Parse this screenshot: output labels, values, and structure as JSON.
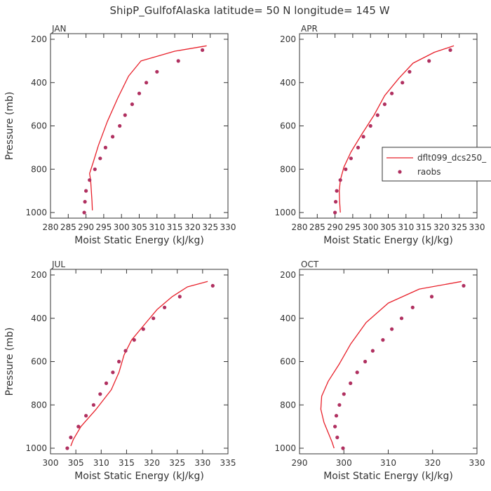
{
  "title": "ShipP_GulfofAlaska   latitude= 50 N longitude= 145 W",
  "legend": {
    "model_label": "dflt099_dcs250_",
    "obs_label": "raobs"
  },
  "colors": {
    "model": "#e8202a",
    "obs": "#b03060",
    "axis": "#333333"
  },
  "chart_data": [
    {
      "type": "line",
      "panel": "JAN",
      "title": "JAN",
      "xlabel": "Moist Static Energy (kJ/kg)",
      "ylabel": "Pressure (mb)",
      "xlim": [
        280,
        330
      ],
      "ylim": [
        200,
        1000
      ],
      "xticks": [
        "280",
        "285",
        "290",
        "295",
        "300",
        "305",
        "310",
        "315",
        "320",
        "325",
        "330"
      ],
      "yticks": [
        "200",
        "400",
        "600",
        "800",
        "1000"
      ],
      "series": [
        {
          "name": "dflt099_dcs250_",
          "kind": "line",
          "x": [
            324,
            315,
            305.5,
            302,
            299,
            296,
            293.5,
            292,
            291,
            291.3,
            291.5,
            291.7,
            291.8
          ],
          "y": [
            230,
            255,
            300,
            370,
            470,
            580,
            690,
            770,
            820,
            850,
            900,
            950,
            990
          ]
        },
        {
          "name": "raobs",
          "kind": "scatter",
          "x": [
            322.8,
            316,
            310,
            307,
            305,
            303,
            301,
            299.5,
            297.5,
            295.5,
            294,
            292.5,
            291,
            290,
            289.7,
            289.5
          ],
          "y": [
            250,
            300,
            350,
            400,
            450,
            500,
            550,
            600,
            650,
            700,
            750,
            800,
            850,
            900,
            950,
            1000
          ]
        }
      ]
    },
    {
      "type": "line",
      "panel": "APR",
      "title": "APR",
      "xlabel": "Moist Static Energy (kJ/kg)",
      "ylabel": "",
      "xlim": [
        280,
        330
      ],
      "ylim": [
        200,
        1000
      ],
      "xticks": [
        "280",
        "285",
        "290",
        "295",
        "300",
        "305",
        "310",
        "315",
        "320",
        "325",
        "330"
      ],
      "yticks": [
        "200",
        "400",
        "600",
        "800",
        "1000"
      ],
      "series": [
        {
          "name": "dflt099_dcs250_",
          "kind": "line",
          "x": [
            323.5,
            318,
            312,
            308,
            304,
            301,
            297.5,
            294.5,
            292.5,
            291.5,
            291.2,
            291.3,
            291.5
          ],
          "y": [
            230,
            260,
            310,
            380,
            460,
            550,
            640,
            720,
            790,
            850,
            900,
            950,
            1000
          ]
        },
        {
          "name": "raobs",
          "kind": "scatter",
          "x": [
            322.5,
            316.5,
            311,
            309,
            306,
            304,
            302,
            300,
            298,
            296.5,
            294.5,
            293,
            291.5,
            290.5,
            290.2,
            290
          ],
          "y": [
            250,
            300,
            350,
            400,
            450,
            500,
            550,
            600,
            650,
            700,
            750,
            800,
            850,
            900,
            950,
            1000
          ]
        }
      ]
    },
    {
      "type": "line",
      "panel": "JUL",
      "title": "JUL",
      "xlabel": "Moist Static Energy (kJ/kg)",
      "ylabel": "Pressure (mb)",
      "xlim": [
        300,
        335
      ],
      "ylim": [
        200,
        1000
      ],
      "xticks": [
        "300",
        "305",
        "310",
        "315",
        "320",
        "325",
        "330",
        "335"
      ],
      "yticks": [
        "200",
        "400",
        "600",
        "800",
        "1000"
      ],
      "series": [
        {
          "name": "dflt099_dcs250_",
          "kind": "line",
          "x": [
            331,
            327,
            324,
            321,
            318.5,
            316,
            314.5,
            313.5,
            312,
            309,
            306,
            304.5,
            304
          ],
          "y": [
            230,
            255,
            300,
            360,
            430,
            500,
            570,
            650,
            730,
            820,
            900,
            960,
            990
          ]
        },
        {
          "name": "raobs",
          "kind": "scatter",
          "x": [
            332,
            325.5,
            322.5,
            320.3,
            318.3,
            316.5,
            314.8,
            313.5,
            312.3,
            311,
            309.8,
            308.5,
            307,
            305.5,
            304,
            303.3
          ],
          "y": [
            250,
            300,
            350,
            400,
            450,
            500,
            550,
            600,
            650,
            700,
            750,
            800,
            850,
            900,
            950,
            1000
          ]
        }
      ]
    },
    {
      "type": "line",
      "panel": "OCT",
      "title": "OCT",
      "xlabel": "Moist Static Energy (kJ/kg)",
      "ylabel": "",
      "xlim": [
        290,
        330
      ],
      "ylim": [
        200,
        1000
      ],
      "xticks": [
        "290",
        "300",
        "310",
        "320",
        "330"
      ],
      "yticks": [
        "200",
        "400",
        "600",
        "800",
        "1000"
      ],
      "series": [
        {
          "name": "dflt099_dcs250_",
          "kind": "line",
          "x": [
            326.5,
            317,
            310,
            305,
            301.5,
            299,
            296.5,
            295,
            294.8,
            295.5,
            296.5,
            297.3,
            297.8
          ],
          "y": [
            230,
            265,
            330,
            420,
            520,
            610,
            690,
            760,
            820,
            880,
            930,
            970,
            1000
          ]
        },
        {
          "name": "raobs",
          "kind": "scatter",
          "x": [
            327,
            319.8,
            315.5,
            313,
            310.8,
            308.8,
            306.5,
            304.8,
            303,
            301.5,
            300,
            299,
            298.3,
            298,
            298.5,
            299.8
          ],
          "y": [
            250,
            300,
            350,
            400,
            450,
            500,
            550,
            600,
            650,
            700,
            750,
            800,
            850,
            900,
            950,
            1000
          ]
        }
      ]
    }
  ]
}
